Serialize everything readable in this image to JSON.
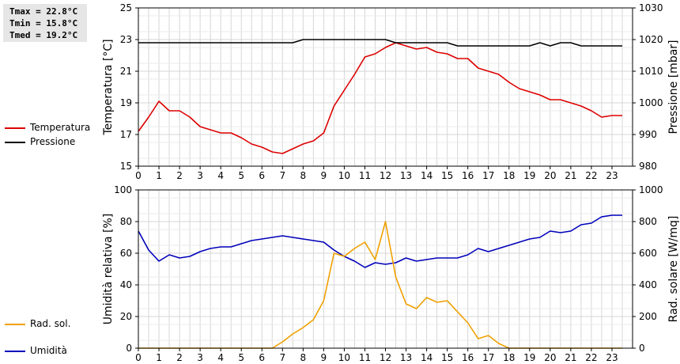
{
  "stats": {
    "tmax": "Tmax = 22.8°C",
    "tmin": "Tmin = 15.8°C",
    "tmed": "Tmed = 19.2°C"
  },
  "legend_top": [
    {
      "label": "Temperatura",
      "color": "#dd0000"
    },
    {
      "label": "Pressione",
      "color": "#000000"
    }
  ],
  "legend_bottom": [
    {
      "label": "Umidità",
      "color": "#0000bb"
    },
    {
      "label": "Rad. sol.",
      "color": "#f0a000"
    }
  ],
  "chart_data": [
    {
      "type": "line",
      "xlabel": "",
      "x_ticks": [
        "0",
        "1",
        "2",
        "3",
        "4",
        "5",
        "6",
        "7",
        "8",
        "9",
        "10",
        "11",
        "12",
        "13",
        "14",
        "15",
        "16",
        "17",
        "18",
        "19",
        "20",
        "21",
        "22",
        "23"
      ],
      "xlim": [
        0,
        24
      ],
      "grid": true,
      "left_axis": {
        "label": "Temperatura [°C]",
        "lim": [
          15,
          25
        ],
        "ticks": [
          "15",
          "17",
          "19",
          "21",
          "23",
          "25"
        ]
      },
      "right_axis": {
        "label": "Pressione [mbar]",
        "lim": [
          980,
          1030
        ],
        "ticks": [
          "980",
          "990",
          "1000",
          "1010",
          "1020",
          "1030"
        ]
      },
      "series": [
        {
          "name": "Temperatura",
          "axis": "left",
          "color": "#dd0000",
          "x": [
            0,
            0.5,
            1,
            1.5,
            2,
            2.5,
            3,
            3.5,
            4,
            4.5,
            5,
            5.5,
            6,
            6.5,
            7,
            7.5,
            8,
            8.5,
            9,
            9.5,
            10,
            10.5,
            11,
            11.5,
            12,
            12.5,
            13,
            13.5,
            14,
            14.5,
            15,
            15.5,
            16,
            16.5,
            17,
            17.5,
            18,
            18.5,
            19,
            19.5,
            20,
            20.5,
            21,
            21.5,
            22,
            22.5,
            23,
            23.5
          ],
          "y": [
            17.2,
            18.1,
            19.1,
            18.5,
            18.5,
            18.1,
            17.5,
            17.3,
            17.1,
            17.1,
            16.8,
            16.4,
            16.2,
            15.9,
            15.8,
            16.1,
            16.4,
            16.6,
            17.1,
            18.8,
            19.8,
            20.8,
            21.9,
            22.1,
            22.5,
            22.8,
            22.6,
            22.4,
            22.5,
            22.2,
            22.1,
            21.8,
            21.8,
            21.2,
            21.0,
            20.8,
            20.3,
            19.9,
            19.7,
            19.5,
            19.2,
            19.2,
            19.0,
            18.8,
            18.5,
            18.1,
            18.2,
            18.2
          ]
        },
        {
          "name": "Pressione",
          "axis": "right",
          "color": "#000000",
          "x": [
            0,
            0.5,
            1,
            1.5,
            2,
            2.5,
            3,
            3.5,
            4,
            4.5,
            5,
            5.5,
            6,
            6.5,
            7,
            7.5,
            8,
            8.5,
            9,
            9.5,
            10,
            10.5,
            11,
            11.5,
            12,
            12.5,
            13,
            13.5,
            14,
            14.5,
            15,
            15.5,
            16,
            16.5,
            17,
            17.5,
            18,
            18.5,
            19,
            19.5,
            20,
            20.5,
            21,
            21.5,
            22,
            22.5,
            23,
            23.5
          ],
          "y": [
            1019,
            1019,
            1019,
            1019,
            1019,
            1019,
            1019,
            1019,
            1019,
            1019,
            1019,
            1019,
            1019,
            1019,
            1019,
            1019,
            1020,
            1020,
            1020,
            1020,
            1020,
            1020,
            1020,
            1020,
            1020,
            1019,
            1019,
            1019,
            1019,
            1019,
            1019,
            1018,
            1018,
            1018,
            1018,
            1018,
            1018,
            1018,
            1018,
            1019,
            1018,
            1019,
            1019,
            1018,
            1018,
            1018,
            1018,
            1018
          ]
        }
      ]
    },
    {
      "type": "line",
      "xlabel": "",
      "x_ticks": [
        "0",
        "1",
        "2",
        "3",
        "4",
        "5",
        "6",
        "7",
        "8",
        "9",
        "10",
        "11",
        "12",
        "13",
        "14",
        "15",
        "16",
        "17",
        "18",
        "19",
        "20",
        "21",
        "22",
        "23"
      ],
      "xlim": [
        0,
        24
      ],
      "grid": true,
      "left_axis": {
        "label": "Umidità relativa [%]",
        "lim": [
          0,
          100
        ],
        "ticks": [
          "0",
          "20",
          "40",
          "60",
          "80",
          "100"
        ]
      },
      "right_axis": {
        "label": "Rad. solare [W/mq]",
        "lim": [
          0,
          1000
        ],
        "ticks": [
          "0",
          "200",
          "400",
          "600",
          "800",
          "1000"
        ]
      },
      "series": [
        {
          "name": "Umidità",
          "axis": "left",
          "color": "#0000bb",
          "x": [
            0,
            0.5,
            1,
            1.5,
            2,
            2.5,
            3,
            3.5,
            4,
            4.5,
            5,
            5.5,
            6,
            6.5,
            7,
            7.5,
            8,
            8.5,
            9,
            9.5,
            10,
            10.5,
            11,
            11.5,
            12,
            12.5,
            13,
            13.5,
            14,
            14.5,
            15,
            15.5,
            16,
            16.5,
            17,
            17.5,
            18,
            18.5,
            19,
            19.5,
            20,
            20.5,
            21,
            21.5,
            22,
            22.5,
            23,
            23.5
          ],
          "y": [
            74,
            62,
            55,
            59,
            57,
            58,
            61,
            63,
            64,
            64,
            66,
            68,
            69,
            70,
            71,
            70,
            69,
            68,
            67,
            62,
            58,
            55,
            51,
            54,
            53,
            54,
            57,
            55,
            56,
            57,
            57,
            57,
            59,
            63,
            61,
            63,
            65,
            67,
            69,
            70,
            74,
            73,
            74,
            78,
            79,
            83,
            84,
            84
          ]
        },
        {
          "name": "Rad. sol.",
          "axis": "right",
          "color": "#f0a000",
          "x": [
            0,
            6.5,
            7,
            7.5,
            8,
            8.5,
            9,
            9.5,
            10,
            10.5,
            11,
            11.5,
            12,
            12.5,
            13,
            13.5,
            14,
            14.5,
            15,
            15.5,
            16,
            16.5,
            17,
            17.5,
            18,
            23.5
          ],
          "y": [
            0,
            0,
            40,
            90,
            130,
            180,
            300,
            600,
            580,
            630,
            670,
            560,
            800,
            450,
            280,
            250,
            320,
            290,
            300,
            230,
            160,
            60,
            80,
            30,
            0,
            0
          ]
        }
      ]
    }
  ]
}
